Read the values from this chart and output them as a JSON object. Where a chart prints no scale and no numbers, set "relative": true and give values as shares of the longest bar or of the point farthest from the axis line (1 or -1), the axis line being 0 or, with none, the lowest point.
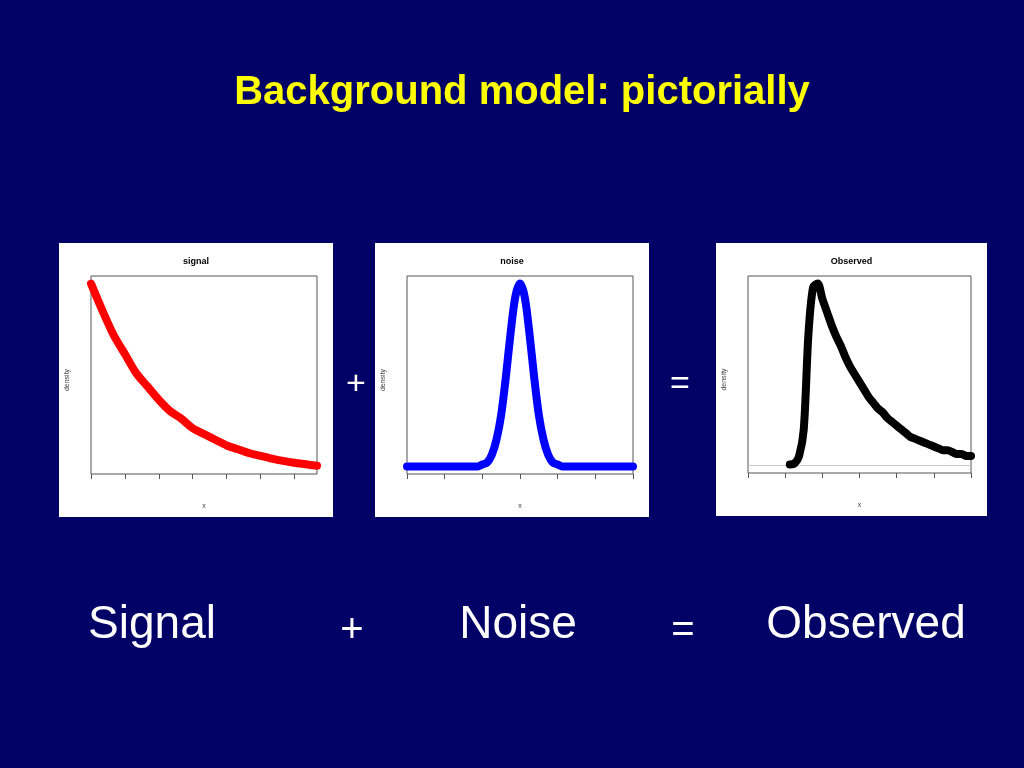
{
  "chart_data": [
    {
      "type": "other",
      "title": "Background model: pictorially"
    },
    {
      "type": "line",
      "title": "signal",
      "xlabel": "x",
      "ylabel": "density",
      "relative": true,
      "grid": false,
      "line_style": "solid",
      "categories": [
        null,
        null,
        null,
        null,
        null,
        null,
        null,
        null,
        null,
        null,
        null,
        null,
        null,
        null,
        null,
        null,
        null,
        null,
        null,
        null,
        null
      ],
      "series": [
        {
          "color": "#ff0000",
          "values": [
            1.0,
            0.86,
            0.73,
            0.63,
            0.53,
            0.46,
            0.39,
            0.33,
            0.29,
            0.24,
            0.21,
            0.18,
            0.15,
            0.13,
            0.11,
            0.095,
            0.081,
            0.069,
            0.059,
            0.051,
            0.043
          ]
        }
      ]
    },
    {
      "type": "line",
      "title": "noise",
      "xlabel": "x",
      "ylabel": "density",
      "relative": true,
      "grid": false,
      "line_style": "solid",
      "categories": [
        null,
        null,
        null,
        null,
        null,
        null,
        null,
        null,
        null,
        null,
        null,
        null,
        null,
        null,
        null,
        null,
        null,
        null,
        null,
        null,
        null,
        null,
        null,
        null,
        null,
        null,
        null,
        null,
        null,
        null,
        null,
        null,
        null,
        null,
        null,
        null,
        null,
        null,
        null,
        null,
        null,
        null,
        null,
        null,
        null,
        null,
        null,
        null,
        null
      ],
      "series": [
        {
          "color": "#0000ff",
          "values": [
            0.04,
            0.04,
            0.04,
            0.04,
            0.04,
            0.04,
            0.04,
            0.04,
            0.04,
            0.04,
            0.04,
            0.04,
            0.04,
            0.04,
            0.04,
            0.04,
            0.05,
            0.06,
            0.1,
            0.18,
            0.31,
            0.51,
            0.74,
            0.93,
            1.0,
            0.93,
            0.74,
            0.51,
            0.31,
            0.18,
            0.1,
            0.06,
            0.05,
            0.04,
            0.04,
            0.04,
            0.04,
            0.04,
            0.04,
            0.04,
            0.04,
            0.04,
            0.04,
            0.04,
            0.04,
            0.04,
            0.04,
            0.04,
            0.04
          ]
        }
      ]
    },
    {
      "type": "line",
      "title": "Observed",
      "xlabel": "x",
      "ylabel": "density",
      "relative": true,
      "grid": false,
      "line_style": "solid",
      "ref_lines": [
        {
          "axis": "y",
          "value": 0.04,
          "color": "#c8c8c8"
        }
      ],
      "categories": [
        null,
        null,
        null,
        null,
        null,
        null,
        null,
        null,
        null,
        null,
        null,
        null,
        null,
        null,
        null,
        null,
        null,
        null,
        null,
        null,
        null,
        null,
        null,
        null,
        null,
        null,
        null,
        null,
        null,
        null,
        null,
        null,
        null,
        null,
        null,
        null,
        null,
        null,
        null,
        null,
        null,
        null,
        null,
        null,
        null,
        null,
        null,
        null,
        null
      ],
      "series": [
        {
          "color": "#000000",
          "values": [
            null,
            null,
            null,
            null,
            null,
            null,
            null,
            null,
            null,
            0.045,
            0.05,
            0.09,
            0.23,
            0.73,
            0.98,
            1.0,
            0.92,
            0.85,
            0.78,
            0.72,
            0.67,
            0.61,
            0.56,
            0.52,
            0.48,
            0.44,
            0.4,
            0.37,
            0.34,
            0.32,
            0.29,
            0.27,
            0.25,
            0.23,
            0.21,
            0.19,
            0.18,
            0.17,
            0.16,
            0.15,
            0.14,
            0.13,
            0.12,
            0.12,
            0.11,
            0.1,
            0.1,
            0.09,
            0.09
          ]
        }
      ]
    },
    {
      "type": "other",
      "annotations": [
        "+",
        "=",
        "Signal",
        "+",
        "Noise",
        "=",
        "Observed"
      ]
    }
  ]
}
